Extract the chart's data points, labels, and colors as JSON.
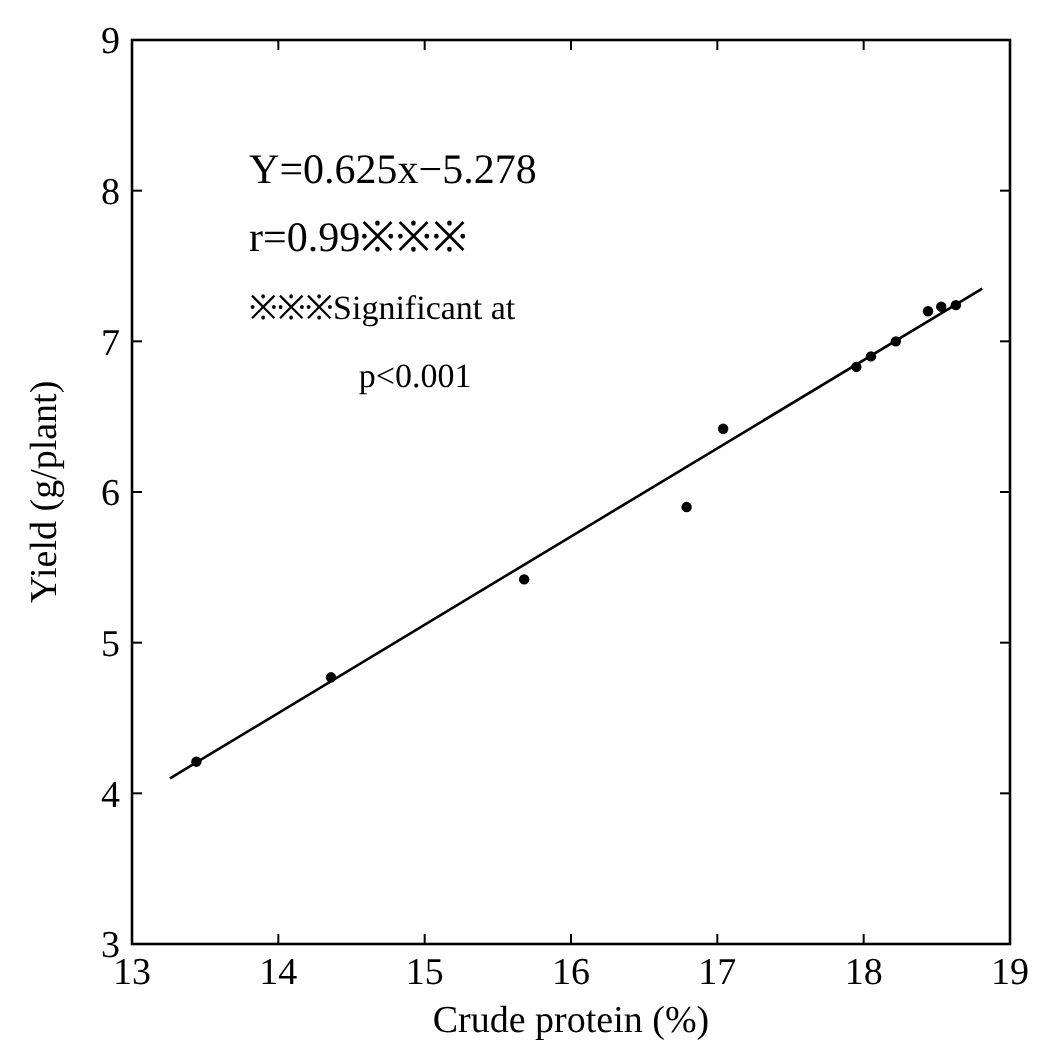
{
  "chart_data": {
    "type": "scatter",
    "xlabel": "Crude protein (%)",
    "ylabel": "Yield (g/plant)",
    "xlim": [
      13,
      19
    ],
    "ylim": [
      3,
      9
    ],
    "xticks": [
      13,
      14,
      15,
      16,
      17,
      18,
      19
    ],
    "yticks": [
      3,
      4,
      5,
      6,
      7,
      8,
      9
    ],
    "grid": false,
    "marker": "circle",
    "series": [
      {
        "color": "#000000",
        "x": [
          13.44,
          14.36,
          15.68,
          16.79,
          17.04,
          17.95,
          18.05,
          18.22,
          18.44,
          18.53,
          18.63
        ],
        "values": [
          4.21,
          4.77,
          5.42,
          5.9,
          6.42,
          6.83,
          6.9,
          7.0,
          7.2,
          7.23,
          7.24
        ]
      },
      {
        "type": "line",
        "color": "#000000",
        "x": [
          13.26,
          18.81
        ],
        "values": [
          4.1,
          7.35
        ],
        "marker": "none"
      }
    ],
    "annotations": [
      "Y=0.625x−5.278",
      "r=0.99※※※",
      "※※※Significant at",
      "p<0.001"
    ]
  }
}
